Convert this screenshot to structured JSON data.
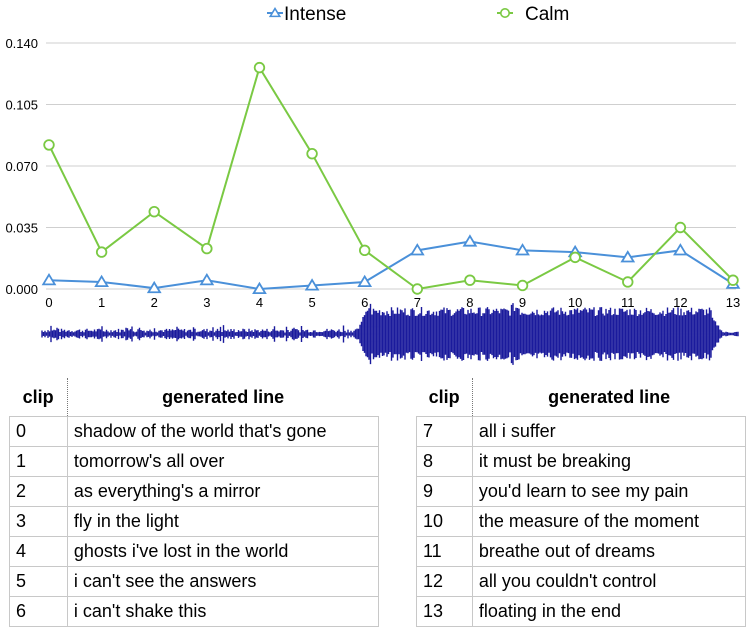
{
  "chart_data": {
    "type": "line",
    "x": [
      0,
      1,
      2,
      3,
      4,
      5,
      6,
      7,
      8,
      9,
      10,
      11,
      12,
      13
    ],
    "series": [
      {
        "name": "Intense",
        "color": "#4a90d9",
        "marker": "triangle",
        "values": [
          0.005,
          0.004,
          0.0005,
          0.005,
          0.0,
          0.002,
          0.004,
          0.022,
          0.027,
          0.022,
          0.021,
          0.018,
          0.022,
          0.003
        ]
      },
      {
        "name": "Calm",
        "color": "#7ac943",
        "marker": "circle",
        "values": [
          0.082,
          0.021,
          0.044,
          0.023,
          0.126,
          0.077,
          0.022,
          0.0,
          0.005,
          0.002,
          0.018,
          0.004,
          0.035,
          0.005
        ]
      }
    ],
    "ylim": [
      0,
      0.14
    ],
    "yticks": [
      "0.000",
      "0.035",
      "0.070",
      "0.105",
      "0.140"
    ],
    "xticks": [
      "0",
      "1",
      "2",
      "3",
      "4",
      "5",
      "6",
      "7",
      "8",
      "9",
      "10",
      "11",
      "12",
      "13"
    ],
    "grid": true,
    "legend": "top-center",
    "waveform_color": "#1a1a9c"
  },
  "tables": {
    "header_clip": "clip",
    "header_line": "generated line",
    "left": [
      {
        "clip": "0",
        "line": "shadow of the world that's gone"
      },
      {
        "clip": "1",
        "line": "tomorrow's all over"
      },
      {
        "clip": "2",
        "line": "as everything's a mirror"
      },
      {
        "clip": "3",
        "line": "fly in the light"
      },
      {
        "clip": "4",
        "line": "ghosts i've lost in the world"
      },
      {
        "clip": "5",
        "line": "i can't see the answers"
      },
      {
        "clip": "6",
        "line": "i can't shake this"
      }
    ],
    "right": [
      {
        "clip": "7",
        "line": "all i suffer"
      },
      {
        "clip": "8",
        "line": "it must be breaking"
      },
      {
        "clip": "9",
        "line": "you'd learn to see my pain"
      },
      {
        "clip": "10",
        "line": "the measure of the moment"
      },
      {
        "clip": "11",
        "line": "breathe out of dreams"
      },
      {
        "clip": "12",
        "line": "all you couldn't control"
      },
      {
        "clip": "13",
        "line": "floating in the end"
      }
    ]
  }
}
